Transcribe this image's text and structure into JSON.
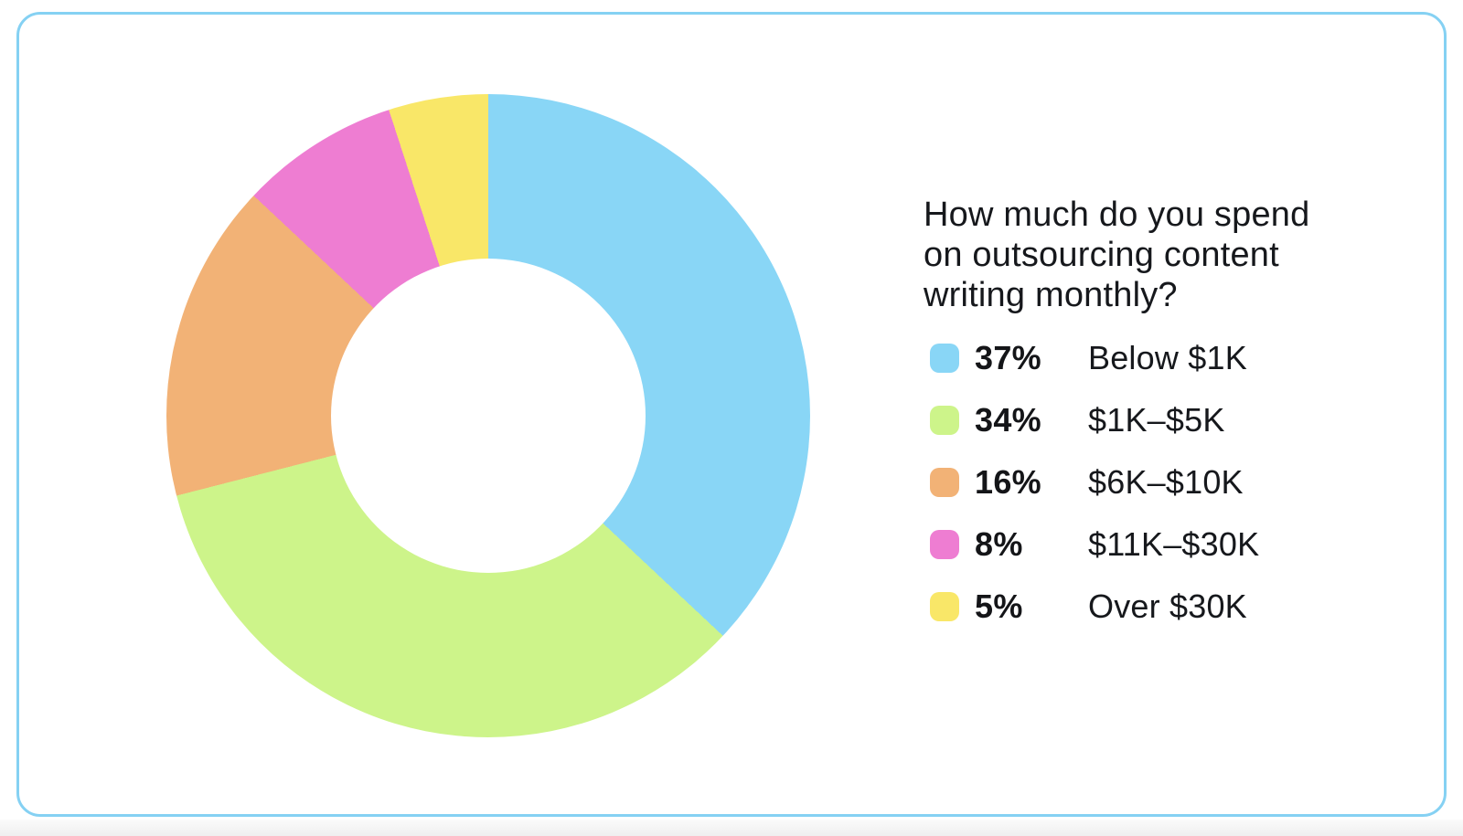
{
  "card": {
    "border_color": "#85d1f3",
    "background_color": "#ffffff"
  },
  "chart_data": {
    "type": "pie",
    "subtype": "donut",
    "title": "How much do you spend on outsourcing content writing monthly?",
    "title_lines": [
      "How much do you spend",
      "on outsourcing content",
      "writing monthly?"
    ],
    "direction": "clockwise",
    "start_angle_deg": 0,
    "inner_radius_ratio": 0.49,
    "legend_position": "right",
    "categories": [
      "Below $1K",
      "$1K–$5K",
      "$6K–$10K",
      "$11K–$30K",
      "Over $30K"
    ],
    "values": [
      37,
      34,
      16,
      8,
      5
    ],
    "segments": [
      {
        "label": "Below $1K",
        "value": 37,
        "pct_label": "37%",
        "color": "#89d6f6"
      },
      {
        "label": "$1K–$5K",
        "value": 34,
        "pct_label": "34%",
        "color": "#cdf48a"
      },
      {
        "label": "$6K–$10K",
        "value": 16,
        "pct_label": "16%",
        "color": "#f2b276"
      },
      {
        "label": "$11K–$30K",
        "value": 8,
        "pct_label": "8%",
        "color": "#ee7dd2"
      },
      {
        "label": "Over $30K",
        "value": 5,
        "pct_label": "5%",
        "color": "#f9e768"
      }
    ]
  }
}
